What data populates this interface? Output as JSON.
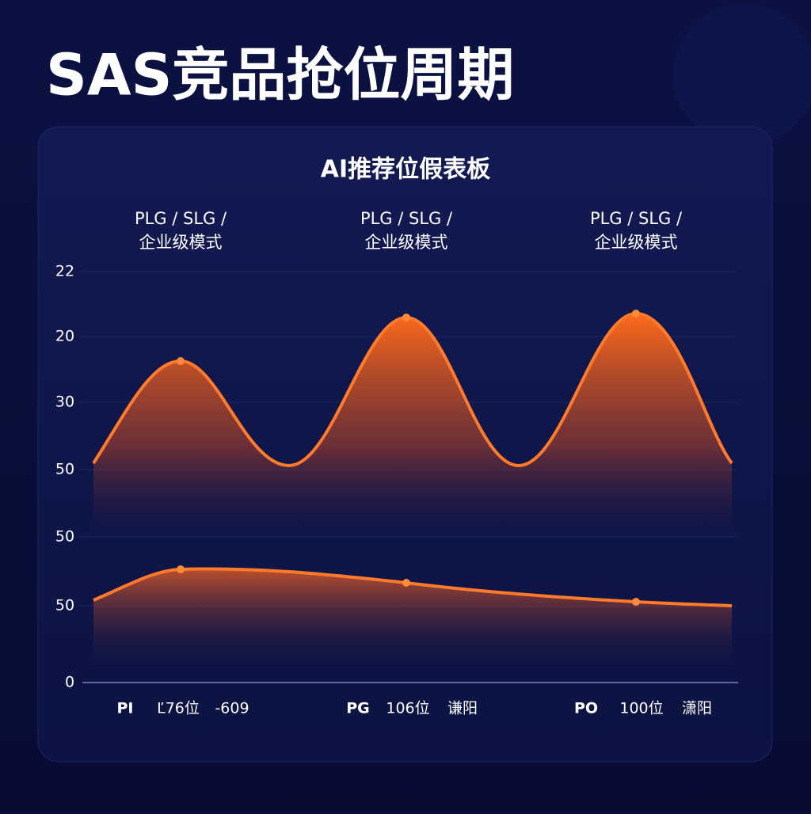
{
  "header": {
    "title": "SAS竞品抢位周期"
  },
  "panel": {
    "title": "AI推荐位假表板",
    "columns": [
      {
        "line1": "PLG / SLG /",
        "line2": "企业级模式"
      },
      {
        "line1": "PLG / SLG /",
        "line2": "企业级模式"
      },
      {
        "line1": "PLG / SLG /",
        "line2": "企业级模式"
      }
    ],
    "y_labels": [
      "22",
      "20",
      "30",
      "50",
      "50",
      "50",
      "0"
    ],
    "footer": [
      {
        "code": "PI",
        "rank": "Ľ76位",
        "note": "-609"
      },
      {
        "code": "PG",
        "rank": "106位",
        "note": "谦阳"
      },
      {
        "code": "PO",
        "rank": "100位",
        "note": "潇阳"
      }
    ]
  }
}
